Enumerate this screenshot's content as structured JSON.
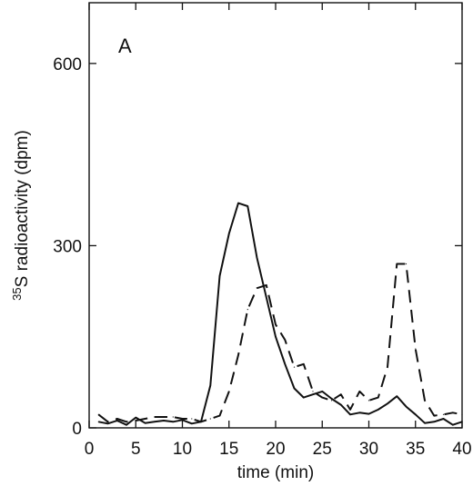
{
  "chart_data": {
    "type": "line",
    "panel_label": "A",
    "xlabel": "time (min)",
    "ylabel_superscript": "35",
    "ylabel_rest": "S radioactivity (dpm)",
    "xlim": [
      0,
      40
    ],
    "ylim": [
      0,
      600
    ],
    "y_top": 700,
    "x_ticks": [
      0,
      5,
      10,
      15,
      20,
      25,
      30,
      35,
      40
    ],
    "y_ticks": [
      0,
      300,
      600
    ],
    "grid": false,
    "series": [
      {
        "style": "solid",
        "x": [
          1,
          2,
          3,
          4,
          5,
          6,
          7,
          8,
          9,
          10,
          11,
          12,
          13,
          14,
          15,
          16,
          17,
          18,
          19,
          20,
          21,
          22,
          23,
          24,
          25,
          26,
          27,
          28,
          29,
          30,
          31,
          32,
          33,
          34,
          35,
          36,
          37,
          38,
          39,
          40
        ],
        "values": [
          10,
          7,
          12,
          5,
          17,
          8,
          10,
          12,
          10,
          13,
          7,
          10,
          70,
          250,
          320,
          370,
          365,
          280,
          215,
          150,
          105,
          65,
          50,
          55,
          60,
          48,
          38,
          22,
          25,
          23,
          30,
          40,
          52,
          35,
          22,
          8,
          10,
          15,
          5,
          10
        ],
        "colors": {
          "stroke": "#111111"
        }
      },
      {
        "style": "dashed",
        "x": [
          1,
          2,
          3,
          4,
          5,
          6,
          7,
          8,
          9,
          10,
          11,
          12,
          13,
          14,
          15,
          16,
          17,
          18,
          19,
          20,
          21,
          22,
          23,
          24,
          25,
          26,
          27,
          28,
          29,
          30,
          31,
          32,
          33,
          34,
          35,
          36,
          37,
          38,
          39,
          40
        ],
        "values": [
          22,
          10,
          15,
          10,
          12,
          15,
          18,
          18,
          18,
          15,
          15,
          10,
          15,
          20,
          60,
          120,
          195,
          230,
          235,
          170,
          145,
          100,
          105,
          60,
          50,
          45,
          55,
          30,
          60,
          45,
          50,
          100,
          270,
          270,
          130,
          45,
          20,
          22,
          25,
          22
        ],
        "colors": {
          "stroke": "#111111"
        }
      }
    ]
  }
}
